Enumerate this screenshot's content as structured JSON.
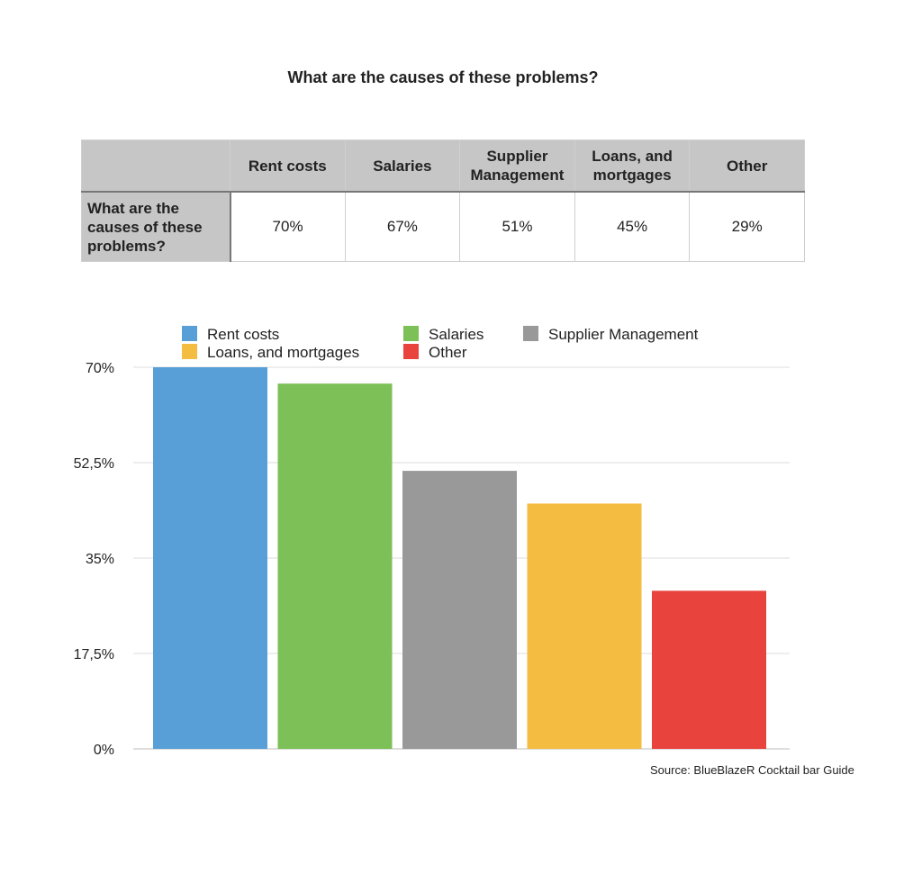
{
  "title": "What are the causes of these problems?",
  "table": {
    "headers": [
      "",
      "Rent costs",
      "Salaries",
      "Supplier Management",
      "Loans, and mortgages",
      "Other"
    ],
    "row_label": "What are the causes of these problems?",
    "values": [
      "70%",
      "67%",
      "51%",
      "45%",
      "29%"
    ]
  },
  "chart_data": {
    "type": "bar",
    "categories": [
      "Rent costs",
      "Salaries",
      "Supplier Management",
      "Loans, and mortgages",
      "Other"
    ],
    "values": [
      70,
      67,
      51,
      45,
      29
    ],
    "colors": [
      "#579fd6",
      "#7cc057",
      "#999999",
      "#f4bc41",
      "#e8433d"
    ],
    "ylim": [
      0,
      70
    ],
    "yticks": [
      {
        "value": 0,
        "label": "0%"
      },
      {
        "value": 17.5,
        "label": "17,5%"
      },
      {
        "value": 35,
        "label": "35%"
      },
      {
        "value": 52.5,
        "label": "52,5%"
      },
      {
        "value": 70,
        "label": "70%"
      }
    ],
    "grid": true,
    "legend_placement": "top",
    "legend": [
      {
        "label": "Rent costs",
        "color": "#579fd6"
      },
      {
        "label": "Salaries",
        "color": "#7cc057"
      },
      {
        "label": "Supplier Management",
        "color": "#999999"
      },
      {
        "label": "Loans, and mortgages",
        "color": "#f4bc41"
      },
      {
        "label": "Other",
        "color": "#e8433d"
      }
    ]
  },
  "source": "Source: BlueBlazeR Cocktail bar Guide"
}
